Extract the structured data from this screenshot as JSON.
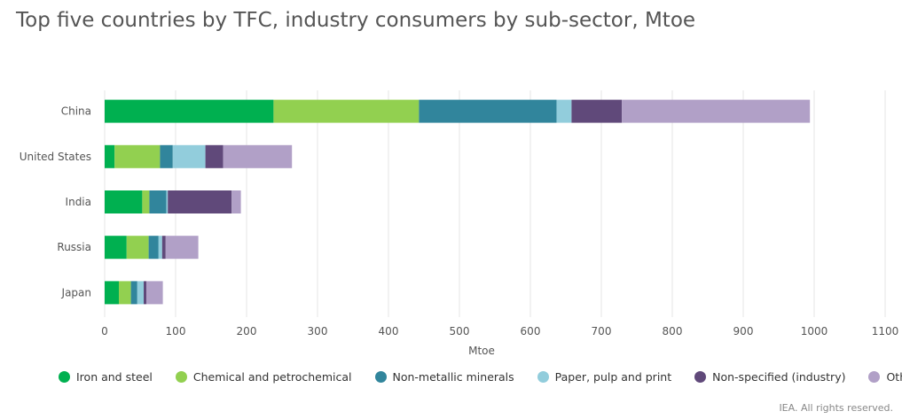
{
  "chart_data": {
    "type": "bar",
    "orientation": "horizontal",
    "stacked": true,
    "title": "Top five countries by TFC, industry consumers by sub-sector, Mtoe",
    "xlabel": "Mtoe",
    "xlim": [
      0,
      1100
    ],
    "xticks": [
      0,
      100,
      200,
      300,
      400,
      500,
      600,
      700,
      800,
      900,
      1000,
      1100
    ],
    "grid": "vertical",
    "legend_position": "bottom",
    "categories": [
      "China",
      "United States",
      "India",
      "Russia",
      "Japan"
    ],
    "series": [
      {
        "name": "Iron and steel",
        "color": "#00b050",
        "values": [
          238,
          14,
          53,
          31,
          20
        ]
      },
      {
        "name": "Chemical and petrochemical",
        "color": "#92d050",
        "values": [
          205,
          64,
          10,
          31,
          17
        ]
      },
      {
        "name": "Non-metallic minerals",
        "color": "#31859c",
        "values": [
          194,
          18,
          24,
          14,
          9
        ]
      },
      {
        "name": "Paper, pulp and print",
        "color": "#92cddc",
        "values": [
          21,
          46,
          2,
          5,
          9
        ]
      },
      {
        "name": "Non-specified (industry)",
        "color": "#60497a",
        "values": [
          71,
          25,
          90,
          5,
          4
        ]
      },
      {
        "name": "Other",
        "color": "#b1a0c7",
        "values": [
          265,
          97,
          13,
          46,
          23
        ]
      }
    ]
  },
  "credit": "IEA. All rights reserved."
}
